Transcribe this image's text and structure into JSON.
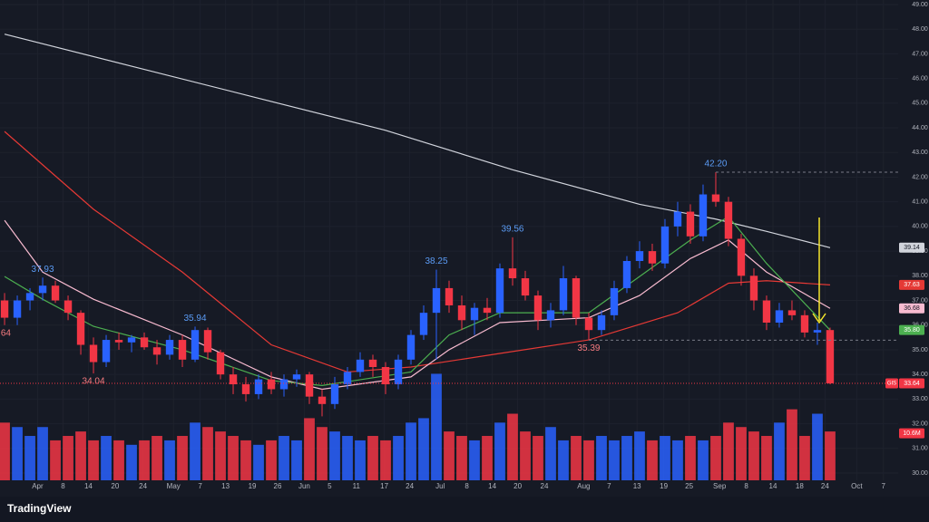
{
  "chart_data": {
    "type": "candlestick",
    "symbol": "GIS",
    "brand": "TradingView",
    "up_color": "#2962ff",
    "down_color": "#f23645",
    "grid": true,
    "xlim": [
      -0.36,
      70.36
    ],
    "xticks": [
      {
        "value": 2.6,
        "label": "Apr"
      },
      {
        "value": 4.6,
        "label": "8"
      },
      {
        "value": 6.6,
        "label": "14"
      },
      {
        "value": 8.7,
        "label": "20"
      },
      {
        "value": 10.9,
        "label": "24"
      },
      {
        "value": 13.3,
        "label": "May"
      },
      {
        "value": 15.4,
        "label": "7"
      },
      {
        "value": 17.4,
        "label": "13"
      },
      {
        "value": 19.5,
        "label": "19"
      },
      {
        "value": 21.5,
        "label": "26"
      },
      {
        "value": 23.6,
        "label": "Jun"
      },
      {
        "value": 25.6,
        "label": "5"
      },
      {
        "value": 27.7,
        "label": "11"
      },
      {
        "value": 29.9,
        "label": "17"
      },
      {
        "value": 31.9,
        "label": "24"
      },
      {
        "value": 34.3,
        "label": "Jul"
      },
      {
        "value": 36.4,
        "label": "8"
      },
      {
        "value": 38.4,
        "label": "14"
      },
      {
        "value": 40.4,
        "label": "20"
      },
      {
        "value": 42.5,
        "label": "24"
      },
      {
        "value": 45.6,
        "label": "Aug"
      },
      {
        "value": 47.6,
        "label": "7"
      },
      {
        "value": 49.8,
        "label": "13"
      },
      {
        "value": 51.9,
        "label": "19"
      },
      {
        "value": 53.9,
        "label": "25"
      },
      {
        "value": 56.3,
        "label": "Sep"
      },
      {
        "value": 58.4,
        "label": "8"
      },
      {
        "value": 60.5,
        "label": "14"
      },
      {
        "value": 62.6,
        "label": "18"
      },
      {
        "value": 64.6,
        "label": "24"
      },
      {
        "value": 67.1,
        "label": "Oct"
      },
      {
        "value": 69.2,
        "label": "7"
      }
    ],
    "ylim": [
      30,
      49
    ],
    "yticks": [
      {
        "value": 30,
        "label": "30.00"
      },
      {
        "value": 31,
        "label": "31.00"
      },
      {
        "value": 32,
        "label": "32.00"
      },
      {
        "value": 33,
        "label": "33.00"
      },
      {
        "value": 34,
        "label": "34.00"
      },
      {
        "value": 35,
        "label": "35.00"
      },
      {
        "value": 36,
        "label": "36.00"
      },
      {
        "value": 37,
        "label": "37.00"
      },
      {
        "value": 38,
        "label": "38.00"
      },
      {
        "value": 39,
        "label": "39.00"
      },
      {
        "value": 40,
        "label": "40.00"
      },
      {
        "value": 41,
        "label": "41.00"
      },
      {
        "value": 42,
        "label": "42.00"
      },
      {
        "value": 43,
        "label": "43.00"
      },
      {
        "value": 44,
        "label": "44.00"
      },
      {
        "value": 45,
        "label": "45.00"
      },
      {
        "value": 46,
        "label": "46.00"
      },
      {
        "value": 47,
        "label": "47.00"
      },
      {
        "value": 48,
        "label": "48.00"
      },
      {
        "value": 49,
        "label": "49.00"
      }
    ],
    "open": [
      37.0,
      36.3,
      37.0,
      37.3,
      37.6,
      37.0,
      36.5,
      35.2,
      34.5,
      35.4,
      35.3,
      35.5,
      35.1,
      34.8,
      35.4,
      34.6,
      35.8,
      34.9,
      34.0,
      33.6,
      33.2,
      33.8,
      33.4,
      33.8,
      34.0,
      33.1,
      32.8,
      33.6,
      34.1,
      34.6,
      34.3,
      33.6,
      34.6,
      35.6,
      36.5,
      37.5,
      36.8,
      36.2,
      36.7,
      36.5,
      38.3,
      37.9,
      37.2,
      36.2,
      36.6,
      37.9,
      36.3,
      35.8,
      36.4,
      37.5,
      38.6,
      39.0,
      38.5,
      40.0,
      40.6,
      39.6,
      41.3,
      41.0,
      39.5,
      38.0,
      37.0,
      36.1,
      36.6,
      36.4,
      35.7,
      35.8
    ],
    "high": [
      37.3,
      37.2,
      37.5,
      37.93,
      37.8,
      37.2,
      36.6,
      35.5,
      35.6,
      35.7,
      35.6,
      35.7,
      35.4,
      35.6,
      35.6,
      35.94,
      35.9,
      35.0,
      34.3,
      33.9,
      34.0,
      34.1,
      34.0,
      34.2,
      34.1,
      33.4,
      33.9,
      34.3,
      34.9,
      34.8,
      34.5,
      34.8,
      35.8,
      36.8,
      38.25,
      37.8,
      37.2,
      36.9,
      37.1,
      38.5,
      39.56,
      38.2,
      37.4,
      36.9,
      38.4,
      38.0,
      36.5,
      36.6,
      37.8,
      38.8,
      39.4,
      39.3,
      40.3,
      41.0,
      40.9,
      41.7,
      42.2,
      41.2,
      39.7,
      38.3,
      37.2,
      36.9,
      37.0,
      36.6,
      36.1,
      35.9
    ],
    "low": [
      36.0,
      36.0,
      36.6,
      37.0,
      36.9,
      36.2,
      34.8,
      34.04,
      34.3,
      35.0,
      34.9,
      35.0,
      34.4,
      34.6,
      34.3,
      34.5,
      34.6,
      33.8,
      33.2,
      32.9,
      33.0,
      33.2,
      33.1,
      33.5,
      32.8,
      32.3,
      32.6,
      33.4,
      33.9,
      33.9,
      33.2,
      33.4,
      34.4,
      35.4,
      34.6,
      36.5,
      35.8,
      35.6,
      36.2,
      36.3,
      37.6,
      37.0,
      35.8,
      35.9,
      36.4,
      36.0,
      35.39,
      35.6,
      36.2,
      37.3,
      38.3,
      38.2,
      38.3,
      39.6,
      39.3,
      39.4,
      40.8,
      39.2,
      37.6,
      36.6,
      35.8,
      35.9,
      36.2,
      35.5,
      35.2,
      33.6
    ],
    "close": [
      36.3,
      37.0,
      37.3,
      37.6,
      37.0,
      36.5,
      35.2,
      34.5,
      35.4,
      35.3,
      35.5,
      35.1,
      34.8,
      35.4,
      34.6,
      35.8,
      34.9,
      34.0,
      33.6,
      33.2,
      33.8,
      33.4,
      33.8,
      34.0,
      33.1,
      32.8,
      33.6,
      34.1,
      34.6,
      34.3,
      33.6,
      34.6,
      35.6,
      36.5,
      37.5,
      36.8,
      36.2,
      36.7,
      36.5,
      38.3,
      37.9,
      37.2,
      36.2,
      36.6,
      37.9,
      36.3,
      35.8,
      36.4,
      37.5,
      38.6,
      39.0,
      38.5,
      40.0,
      40.6,
      39.6,
      41.3,
      41.0,
      39.5,
      38.0,
      37.0,
      36.1,
      36.6,
      36.4,
      35.7,
      35.8,
      33.64
    ],
    "last_price_label": "33.64",
    "volume": [
      13,
      12,
      10,
      12,
      9,
      10,
      11,
      9,
      10,
      9,
      8,
      9,
      10,
      9,
      10,
      13,
      12,
      11,
      10,
      9,
      8,
      9,
      10,
      9,
      14,
      12,
      11,
      10,
      9,
      10,
      9,
      10,
      13,
      14,
      24,
      11,
      10,
      9,
      10,
      13,
      15,
      11,
      10,
      12,
      9,
      10,
      9,
      10,
      9,
      10,
      11,
      9,
      10,
      9,
      10,
      9,
      10,
      13,
      12,
      11,
      10,
      13,
      16,
      10,
      15,
      11
    ],
    "volume_ylim": [
      0,
      24.5
    ],
    "volume_label": {
      "value": 10.6,
      "label": "10.6M"
    },
    "series": [
      {
        "color": "#d1d4dc",
        "value_label": "39.14",
        "x": [
          0,
          10,
          20,
          30,
          40,
          50,
          56,
          60,
          65
        ],
        "values": [
          47.8,
          46.5,
          45.2,
          43.9,
          42.3,
          40.9,
          40.3,
          39.8,
          39.14
        ]
      },
      {
        "color": "#e53935",
        "value_label": "37.63",
        "x": [
          0,
          7,
          14,
          21,
          27,
          32,
          39,
          46,
          53,
          57,
          60,
          65
        ],
        "values": [
          43.85,
          40.7,
          38.15,
          35.2,
          34.1,
          34.3,
          34.85,
          35.4,
          36.5,
          37.7,
          37.8,
          37.63
        ]
      },
      {
        "color": "#f8bbd0",
        "value_label": "36.68",
        "x": [
          0,
          3,
          7,
          14,
          21,
          25,
          32,
          35,
          39,
          46,
          50,
          54,
          57,
          60,
          65
        ],
        "values": [
          40.25,
          38.15,
          37.05,
          35.6,
          33.9,
          33.4,
          33.9,
          35.0,
          36.1,
          36.3,
          37.2,
          38.7,
          39.45,
          38.15,
          36.68
        ]
      },
      {
        "color": "#4caf50",
        "value_label": "35.80",
        "x": [
          0,
          3,
          7,
          14,
          21,
          25,
          32,
          35,
          39,
          46,
          50,
          54,
          57,
          60,
          65
        ],
        "values": [
          37.97,
          37.05,
          35.95,
          35.0,
          33.75,
          33.55,
          34.1,
          35.6,
          36.5,
          36.5,
          37.97,
          39.45,
          40.4,
          38.5,
          35.8
        ]
      }
    ],
    "extreme_labels": [
      {
        "candle": 0,
        "at": "low",
        "label": ".64"
      },
      {
        "candle": 3,
        "at": "high",
        "label": "37.93"
      },
      {
        "candle": 7,
        "at": "low",
        "label": "34.04"
      },
      {
        "candle": 15,
        "at": "high",
        "label": "35.94"
      },
      {
        "candle": 34,
        "at": "high",
        "label": "38.25"
      },
      {
        "candle": 40,
        "at": "high",
        "label": "39.56"
      },
      {
        "candle": 46,
        "at": "low",
        "label": "35.39"
      },
      {
        "candle": 56,
        "at": "high",
        "label": "42.20"
      }
    ]
  }
}
